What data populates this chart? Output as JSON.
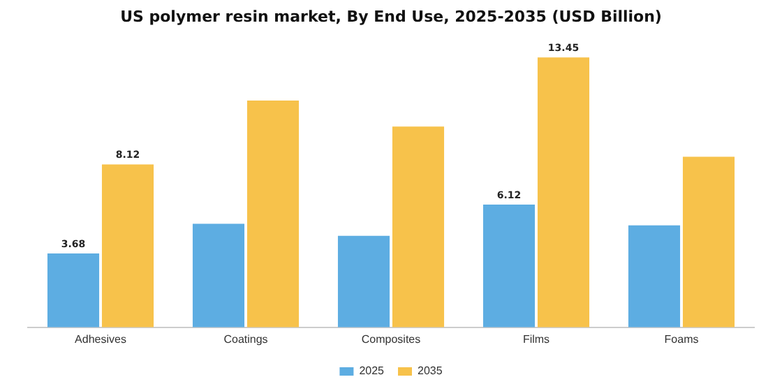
{
  "chart_data": {
    "type": "bar",
    "title": "US polymer resin market, By End Use, 2025-2035 (USD Billion)",
    "categories": [
      "Adhesives",
      "Coatings",
      "Composites",
      "Films",
      "Foams"
    ],
    "series": [
      {
        "name": "2025",
        "color": "#5dade2",
        "values": [
          3.68,
          5.16,
          4.56,
          6.12,
          5.08
        ],
        "value_labels": [
          "3.68",
          null,
          null,
          "6.12",
          null
        ]
      },
      {
        "name": "2035",
        "color": "#f7c24b",
        "values": [
          8.12,
          11.3,
          10.0,
          13.45,
          8.5
        ],
        "value_labels": [
          "8.12",
          null,
          null,
          "13.45",
          null
        ]
      }
    ],
    "tick_labels": "x",
    "grid": false,
    "legend": "bottom"
  }
}
